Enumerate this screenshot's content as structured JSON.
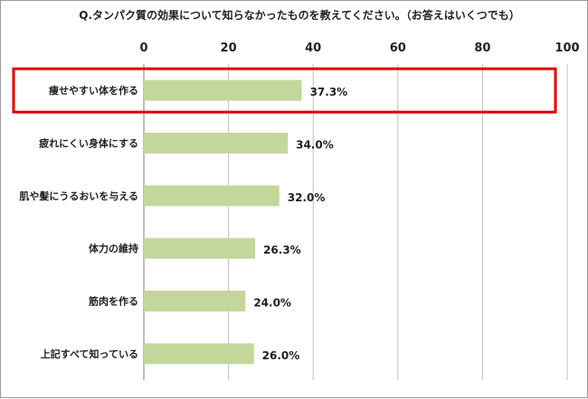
{
  "chart_data": {
    "type": "bar",
    "orientation": "horizontal",
    "title": "Q.タンパク質の効果について知らなかったものを教えてください。（お答えはいくつでも）",
    "categories": [
      "痩せやすい体を作る",
      "疲れにくい身体にする",
      "肌や髪にうるおいを与える",
      "体力の維持",
      "筋肉を作る",
      "上記すべて知っている"
    ],
    "values": [
      37.3,
      34.0,
      32.0,
      26.3,
      24.0,
      26.0
    ],
    "data_labels": [
      "37.3%",
      "34.0%",
      "32.0%",
      "26.3%",
      "24.0%",
      "26.0%"
    ],
    "xlim": [
      0,
      100
    ],
    "ticks": [
      "0",
      "20",
      "40",
      "60",
      "80",
      "100"
    ],
    "tick_values": [
      0,
      20,
      40,
      60,
      80,
      100
    ],
    "grid": true,
    "bar_color": "#c4d79b",
    "highlight_color": "#e00000",
    "highlighted_index": 0
  }
}
